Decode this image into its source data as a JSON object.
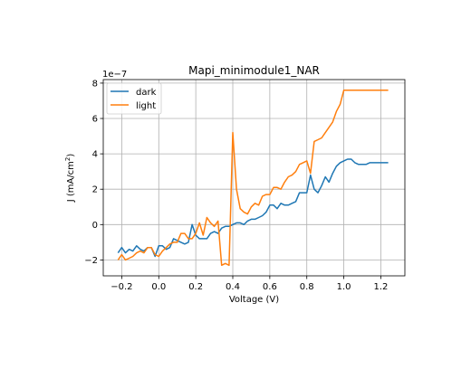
{
  "chart_data": {
    "type": "line",
    "title": "Mapi_minimodule1_NAR",
    "xlabel": "Voltage (V)",
    "ylabel_main": "J (mA/cm",
    "ylabel_sup": "2",
    "ylabel_end": ")",
    "offset_text": "1e−7",
    "xlim": [
      -0.3,
      1.33
    ],
    "ylim": [
      -2.9,
      8.2
    ],
    "x_ticks": [
      -0.2,
      0.0,
      0.2,
      0.4,
      0.6,
      0.8,
      1.0,
      1.2
    ],
    "x_tick_labels": [
      "−0.2",
      "0.0",
      "0.2",
      "0.4",
      "0.6",
      "0.8",
      "1.0",
      "1.2"
    ],
    "y_ticks": [
      -2,
      0,
      2,
      4,
      6,
      8
    ],
    "y_tick_labels": [
      "−2",
      "0",
      "2",
      "4",
      "6",
      "8"
    ],
    "grid": true,
    "legend_position": "top-left",
    "series": [
      {
        "name": "dark",
        "color": "#1f77b4",
        "x": [
          -0.22,
          -0.2,
          -0.18,
          -0.16,
          -0.14,
          -0.12,
          -0.1,
          -0.08,
          -0.06,
          -0.04,
          -0.02,
          0.0,
          0.02,
          0.04,
          0.06,
          0.08,
          0.1,
          0.12,
          0.14,
          0.16,
          0.18,
          0.2,
          0.22,
          0.24,
          0.26,
          0.28,
          0.3,
          0.32,
          0.34,
          0.36,
          0.38,
          0.4,
          0.42,
          0.44,
          0.46,
          0.48,
          0.5,
          0.52,
          0.54,
          0.56,
          0.58,
          0.6,
          0.62,
          0.64,
          0.66,
          0.68,
          0.7,
          0.72,
          0.74,
          0.76,
          0.78,
          0.8,
          0.82,
          0.84,
          0.86,
          0.88,
          0.9,
          0.92,
          0.94,
          0.96,
          0.98,
          1.0,
          1.02,
          1.04,
          1.06,
          1.08,
          1.1,
          1.12,
          1.14,
          1.16,
          1.18,
          1.2,
          1.22,
          1.24
        ],
        "y": [
          -1.6,
          -1.3,
          -1.6,
          -1.4,
          -1.5,
          -1.2,
          -1.4,
          -1.5,
          -1.3,
          -1.3,
          -1.8,
          -1.2,
          -1.2,
          -1.4,
          -1.3,
          -0.8,
          -0.9,
          -1.0,
          -1.1,
          -1.0,
          0.0,
          -0.6,
          -0.8,
          -0.8,
          -0.8,
          -0.5,
          -0.4,
          -0.5,
          -0.2,
          -0.1,
          -0.1,
          0.0,
          0.1,
          0.1,
          0.0,
          0.2,
          0.3,
          0.3,
          0.4,
          0.5,
          0.7,
          1.1,
          1.1,
          0.9,
          1.2,
          1.1,
          1.1,
          1.2,
          1.3,
          1.8,
          1.8,
          1.8,
          2.8,
          2.0,
          1.8,
          2.2,
          2.7,
          2.4,
          2.9,
          3.3,
          3.5,
          3.6,
          3.7,
          3.7,
          3.5,
          3.4,
          3.4,
          3.4,
          3.5,
          3.5,
          3.5,
          3.5,
          3.5,
          3.5
        ]
      },
      {
        "name": "light",
        "color": "#ff7f0e",
        "x": [
          -0.22,
          -0.2,
          -0.18,
          -0.16,
          -0.14,
          -0.12,
          -0.1,
          -0.08,
          -0.06,
          -0.04,
          -0.02,
          0.0,
          0.02,
          0.04,
          0.06,
          0.08,
          0.1,
          0.12,
          0.14,
          0.16,
          0.18,
          0.2,
          0.22,
          0.24,
          0.26,
          0.28,
          0.3,
          0.32,
          0.34,
          0.36,
          0.38,
          0.4,
          0.42,
          0.44,
          0.46,
          0.48,
          0.5,
          0.52,
          0.54,
          0.56,
          0.58,
          0.6,
          0.62,
          0.64,
          0.66,
          0.68,
          0.7,
          0.72,
          0.74,
          0.76,
          0.78,
          0.8,
          0.82,
          0.84,
          0.86,
          0.88,
          0.9,
          0.92,
          0.94,
          0.96,
          0.98,
          1.0,
          1.02,
          1.04,
          1.06,
          1.08,
          1.1,
          1.12,
          1.14,
          1.16,
          1.18,
          1.2,
          1.22,
          1.24
        ],
        "y": [
          -2.0,
          -1.7,
          -2.0,
          -1.9,
          -1.8,
          -1.6,
          -1.5,
          -1.6,
          -1.3,
          -1.3,
          -1.7,
          -1.8,
          -1.5,
          -1.3,
          -1.1,
          -1.0,
          -1.0,
          -0.5,
          -0.5,
          -0.8,
          -0.8,
          -0.5,
          0.1,
          -0.6,
          0.4,
          0.1,
          -0.1,
          0.2,
          -2.3,
          -2.2,
          -2.3,
          5.2,
          2.0,
          0.9,
          0.7,
          0.6,
          1.0,
          1.2,
          1.1,
          1.6,
          1.7,
          1.7,
          2.1,
          2.1,
          2.0,
          2.4,
          2.7,
          2.8,
          3.0,
          3.4,
          3.5,
          3.6,
          2.9,
          4.7,
          4.8,
          4.9,
          5.2,
          5.5,
          5.8,
          6.4,
          6.8,
          7.6,
          7.6,
          7.6,
          7.6,
          7.6,
          7.6,
          7.6,
          7.6,
          7.6,
          7.6,
          7.6,
          7.6,
          7.6
        ]
      }
    ]
  }
}
